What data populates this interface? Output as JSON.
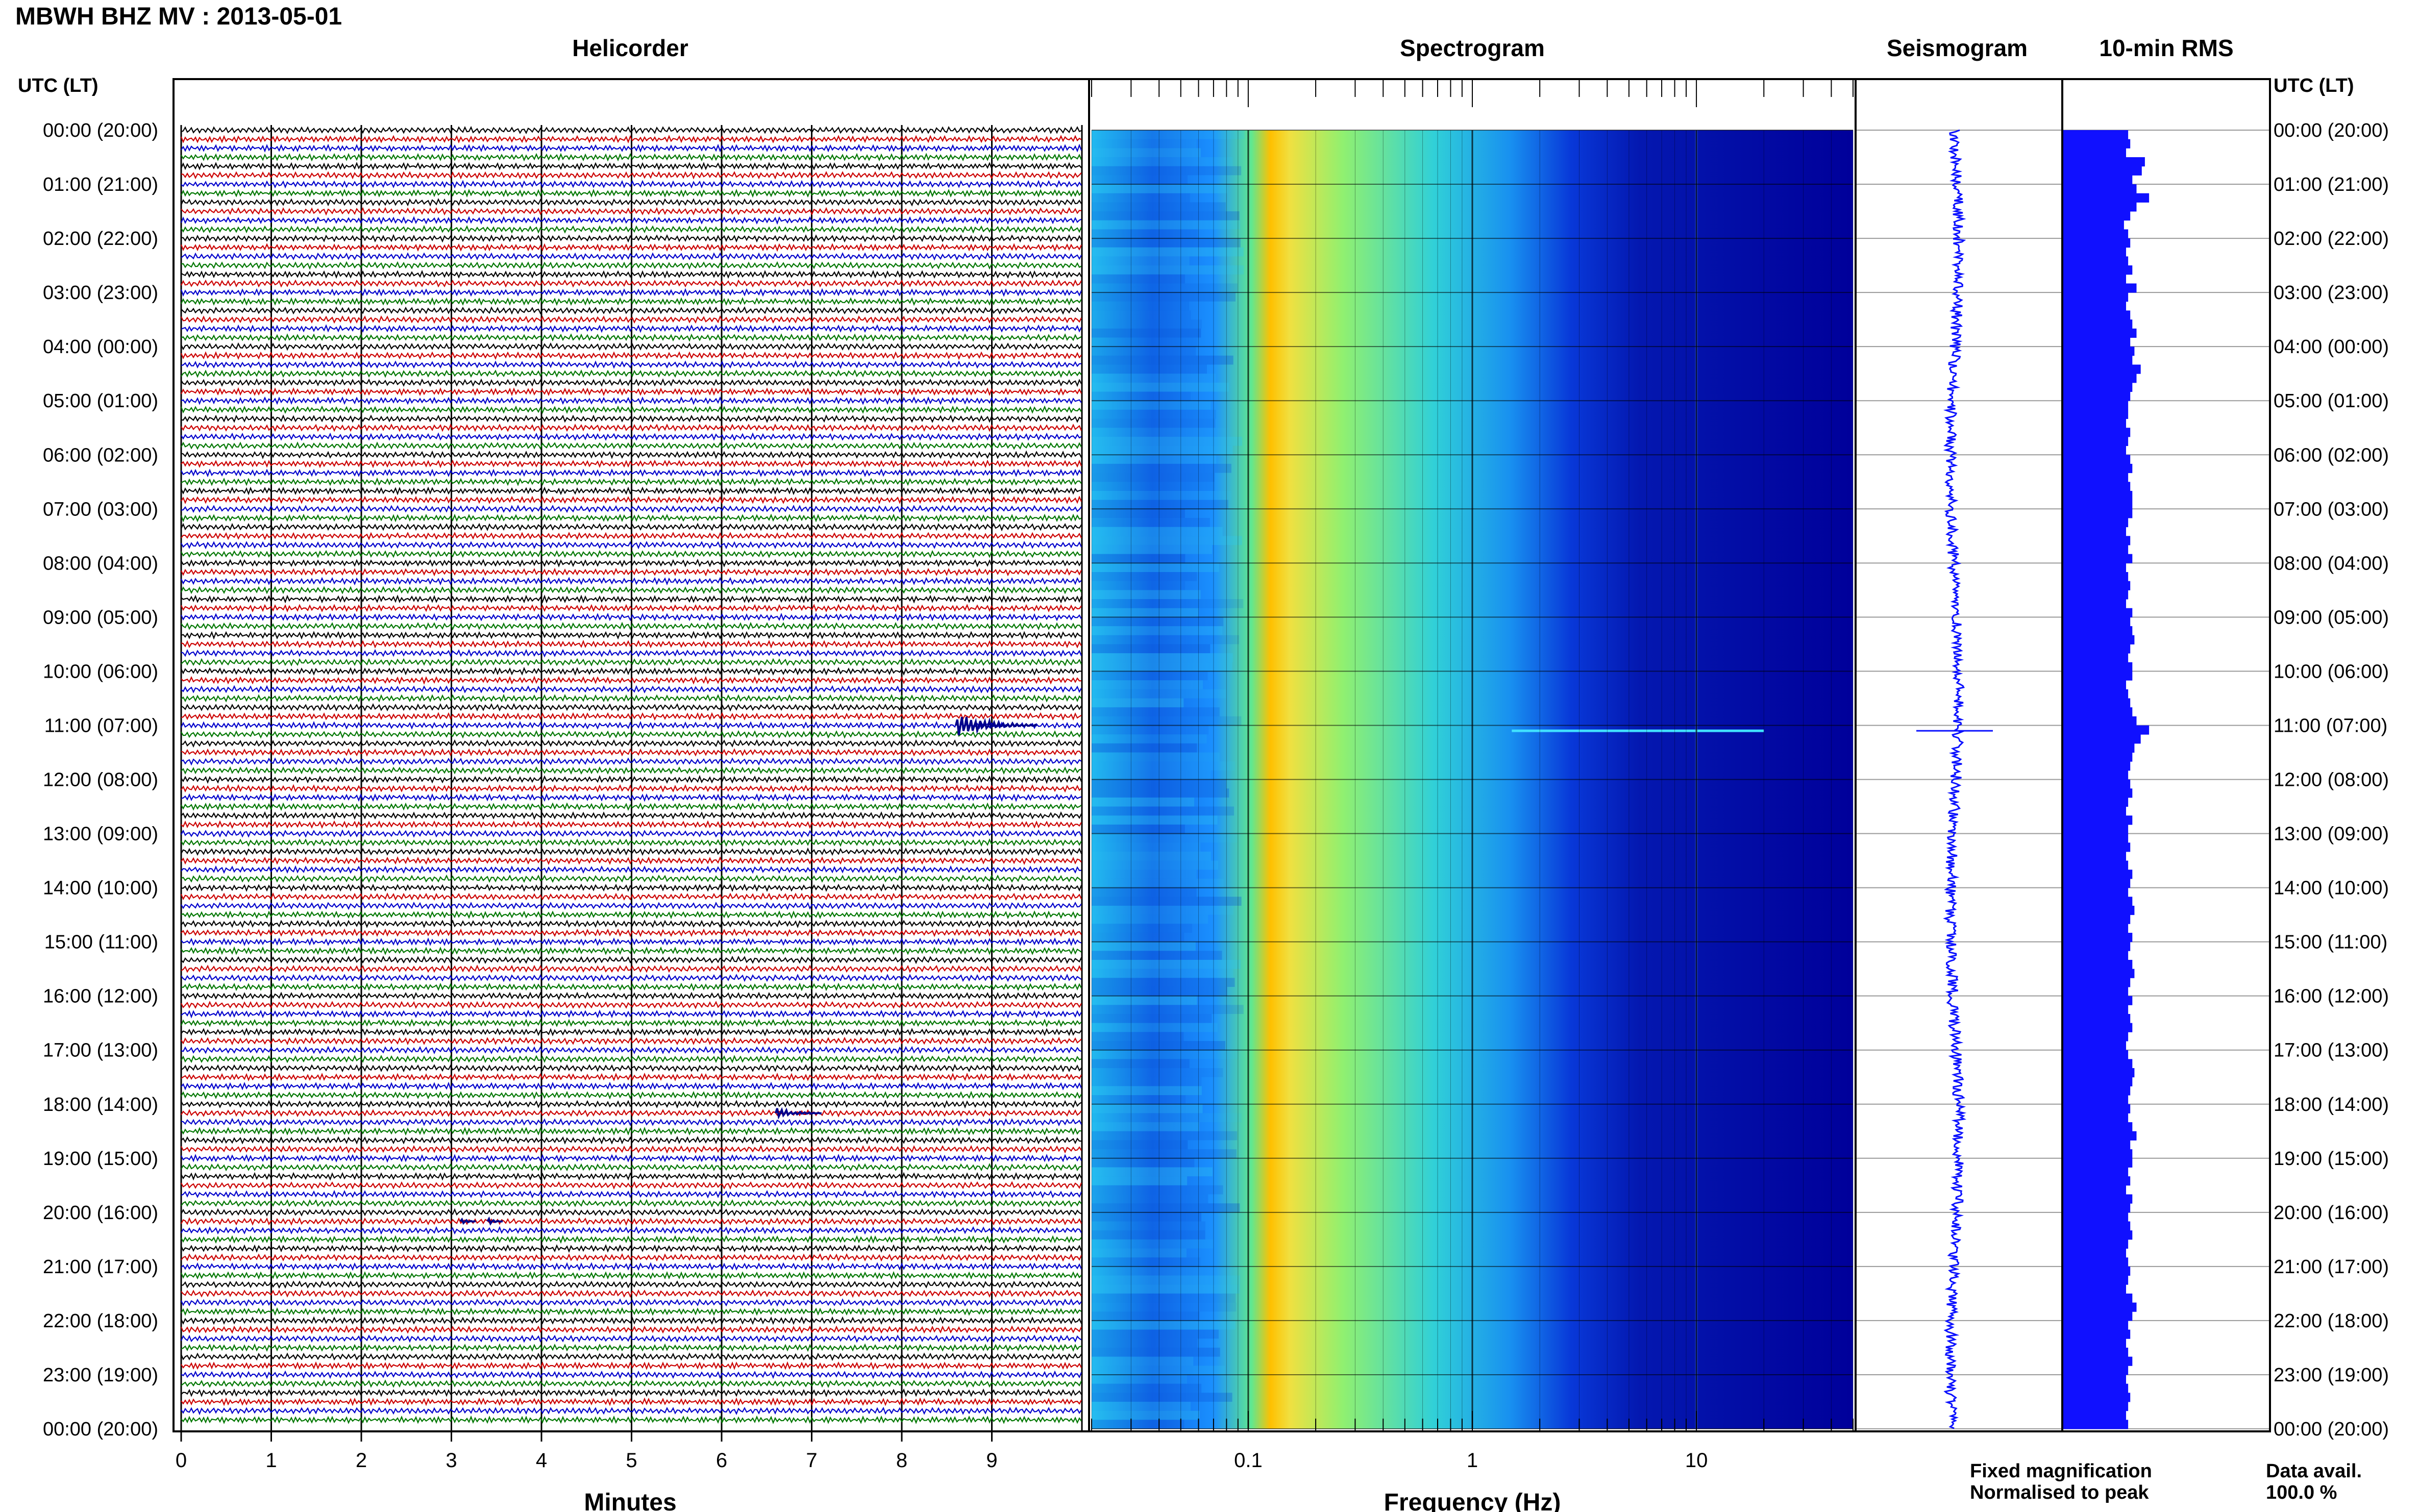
{
  "title": "MBWH BHZ MV : 2013-05-01",
  "panels": {
    "helicorder": "Helicorder",
    "spectrogram": "Spectrogram",
    "seismogram": "Seismogram",
    "rms": "10-min RMS"
  },
  "time_axis_label": "UTC (LT)",
  "time_labels": [
    "00:00 (20:00)",
    "01:00 (21:00)",
    "02:00 (22:00)",
    "03:00 (23:00)",
    "04:00 (00:00)",
    "05:00 (01:00)",
    "06:00 (02:00)",
    "07:00 (03:00)",
    "08:00 (04:00)",
    "09:00 (05:00)",
    "10:00 (06:00)",
    "11:00 (07:00)",
    "12:00 (08:00)",
    "13:00 (09:00)",
    "14:00 (10:00)",
    "15:00 (11:00)",
    "16:00 (12:00)",
    "17:00 (13:00)",
    "18:00 (14:00)",
    "19:00 (15:00)",
    "20:00 (16:00)",
    "21:00 (17:00)",
    "22:00 (18:00)",
    "23:00 (19:00)",
    "00:00 (20:00)"
  ],
  "helicorder_xlabel": "Minutes",
  "helicorder_ticks": [
    "0",
    "1",
    "2",
    "3",
    "4",
    "5",
    "6",
    "7",
    "8",
    "9"
  ],
  "spectrogram_xlabel": "Frequency (Hz)",
  "spectrogram_ticks": [
    "0.1",
    "1",
    "10"
  ],
  "legend": {
    "fixed": "Fixed magnification",
    "normalised": "Normalised to peak",
    "fixed_color": "#1a1aff",
    "normalised_color": "#ff1a1a"
  },
  "data_avail": {
    "label": "Data avail.",
    "value": "100.0 %"
  },
  "colors": {
    "trace_cycle": [
      "#000000",
      "#cc0000",
      "#0000cc",
      "#007700"
    ],
    "spectrogram_scale": [
      "#00008f",
      "#0010ff",
      "#0090ff",
      "#20d0e0",
      "#80ff80",
      "#e0ff30",
      "#ffc000",
      "#ff4000"
    ],
    "rms": "#1010ff"
  },
  "chart_data": [
    {
      "type": "line",
      "name": "helicorder",
      "x_unit": "minutes",
      "xlim": [
        0,
        10
      ],
      "rows_per_hour": 6,
      "hours": 24,
      "events": [
        {
          "hour": 11,
          "row": 0,
          "minute": 8.6,
          "amplitude": "large"
        },
        {
          "hour": 18,
          "row": 1,
          "minute": 6.6,
          "amplitude": "medium"
        },
        {
          "hour": 20,
          "row": 1,
          "minute": 3.1,
          "amplitude": "small"
        },
        {
          "hour": 20,
          "row": 1,
          "minute": 3.4,
          "amplitude": "small"
        }
      ]
    },
    {
      "type": "heatmap",
      "name": "spectrogram",
      "x_scale": "log",
      "xlim": [
        0.02,
        50
      ],
      "y": "time (UTC hours)",
      "ylim": [
        0,
        24
      ],
      "features": [
        {
          "band_hz": [
            0.12,
            0.22
          ],
          "level": "peak energy (microseism)"
        },
        {
          "band_hz": [
            3,
            50
          ],
          "level": "low energy"
        },
        {
          "line_hz": 10,
          "level": "narrow persistent line"
        },
        {
          "hour": 11.1,
          "level": "broadband transient"
        }
      ]
    },
    {
      "type": "line",
      "name": "seismogram",
      "y": "time (UTC hours)",
      "ylim": [
        0,
        24
      ],
      "events": [
        {
          "hour": 11.1
        }
      ]
    },
    {
      "type": "bar",
      "name": "rms",
      "orientation": "horizontal",
      "interval_minutes": 10,
      "ylim": [
        0,
        24
      ],
      "values_relative": [
        0.62,
        0.64,
        0.6,
        0.78,
        0.75,
        0.66,
        0.7,
        0.82,
        0.7,
        0.64,
        0.58,
        0.62,
        0.64,
        0.6,
        0.62,
        0.66,
        0.6,
        0.7,
        0.62,
        0.6,
        0.64,
        0.66,
        0.7,
        0.64,
        0.68,
        0.66,
        0.74,
        0.7,
        0.66,
        0.64,
        0.62,
        0.62,
        0.6,
        0.64,
        0.62,
        0.6,
        0.64,
        0.66,
        0.62,
        0.64,
        0.66,
        0.66,
        0.66,
        0.62,
        0.6,
        0.64,
        0.62,
        0.66,
        0.6,
        0.62,
        0.64,
        0.62,
        0.6,
        0.66,
        0.64,
        0.66,
        0.68,
        0.64,
        0.62,
        0.66,
        0.66,
        0.6,
        0.62,
        0.64,
        0.66,
        0.7,
        0.82,
        0.74,
        0.68,
        0.66,
        0.64,
        0.62,
        0.64,
        0.66,
        0.62,
        0.6,
        0.66,
        0.62,
        0.62,
        0.64,
        0.6,
        0.62,
        0.66,
        0.64,
        0.62,
        0.66,
        0.68,
        0.64,
        0.62,
        0.66,
        0.64,
        0.62,
        0.66,
        0.68,
        0.64,
        0.62,
        0.66,
        0.62,
        0.64,
        0.66,
        0.62,
        0.6,
        0.62,
        0.66,
        0.68,
        0.66,
        0.64,
        0.62,
        0.64,
        0.62,
        0.66,
        0.7,
        0.64,
        0.66,
        0.66,
        0.62,
        0.64,
        0.6,
        0.66,
        0.64,
        0.62,
        0.64,
        0.66,
        0.62,
        0.6,
        0.62,
        0.64,
        0.62,
        0.6,
        0.66,
        0.7,
        0.66,
        0.62,
        0.64,
        0.6,
        0.62,
        0.66,
        0.62,
        0.6,
        0.62,
        0.64,
        0.62,
        0.6,
        0.62
      ]
    }
  ]
}
